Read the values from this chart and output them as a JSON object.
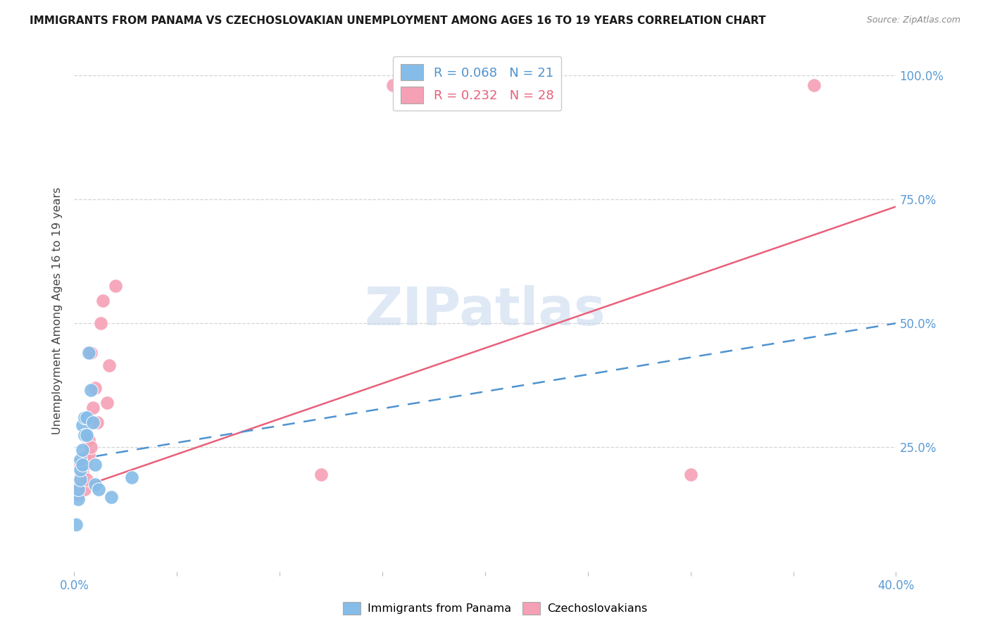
{
  "title": "IMMIGRANTS FROM PANAMA VS CZECHOSLOVAKIAN UNEMPLOYMENT AMONG AGES 16 TO 19 YEARS CORRELATION CHART",
  "source": "Source: ZipAtlas.com",
  "ylabel": "Unemployment Among Ages 16 to 19 years",
  "xlim": [
    0.0,
    0.4
  ],
  "ylim": [
    0.0,
    1.05
  ],
  "xtick_pos": [
    0.0,
    0.05,
    0.1,
    0.15,
    0.2,
    0.25,
    0.3,
    0.35,
    0.4
  ],
  "xtick_labels": [
    "0.0%",
    "",
    "",
    "",
    "",
    "",
    "",
    "",
    "40.0%"
  ],
  "ytick_pos": [
    0.0,
    0.25,
    0.5,
    0.75,
    1.0
  ],
  "ytick_labels_right": [
    "",
    "25.0%",
    "50.0%",
    "75.0%",
    "100.0%"
  ],
  "blue_R": 0.068,
  "blue_N": 21,
  "pink_R": 0.232,
  "pink_N": 28,
  "blue_color": "#85bce8",
  "pink_color": "#f5a0b5",
  "blue_line_color": "#4f93d0",
  "pink_line_color": "#e8607a",
  "right_axis_color": "#5b9bd5",
  "watermark": "ZIPatlas",
  "blue_trend_x0": 0.0,
  "blue_trend_y0": 0.225,
  "blue_trend_x1": 0.4,
  "blue_trend_y1": 0.5,
  "pink_trend_x0": 0.0,
  "pink_trend_y0": 0.165,
  "pink_trend_x1": 0.4,
  "pink_trend_y1": 0.735,
  "blue_x": [
    0.001,
    0.002,
    0.002,
    0.003,
    0.003,
    0.003,
    0.004,
    0.004,
    0.004,
    0.005,
    0.005,
    0.006,
    0.006,
    0.007,
    0.008,
    0.009,
    0.01,
    0.01,
    0.012,
    0.018,
    0.028
  ],
  "blue_y": [
    0.095,
    0.145,
    0.165,
    0.185,
    0.205,
    0.225,
    0.215,
    0.245,
    0.295,
    0.275,
    0.31,
    0.275,
    0.31,
    0.44,
    0.365,
    0.3,
    0.215,
    0.175,
    0.165,
    0.15,
    0.19
  ],
  "pink_x": [
    0.001,
    0.002,
    0.003,
    0.003,
    0.003,
    0.004,
    0.004,
    0.005,
    0.005,
    0.005,
    0.006,
    0.006,
    0.007,
    0.007,
    0.008,
    0.008,
    0.009,
    0.01,
    0.011,
    0.013,
    0.014,
    0.016,
    0.017,
    0.02,
    0.12,
    0.155,
    0.3,
    0.36
  ],
  "pink_y": [
    0.165,
    0.155,
    0.17,
    0.19,
    0.215,
    0.18,
    0.2,
    0.165,
    0.215,
    0.225,
    0.23,
    0.185,
    0.235,
    0.265,
    0.25,
    0.44,
    0.33,
    0.37,
    0.3,
    0.5,
    0.545,
    0.34,
    0.415,
    0.575,
    0.195,
    0.98,
    0.195,
    0.98
  ],
  "background_color": "#ffffff"
}
